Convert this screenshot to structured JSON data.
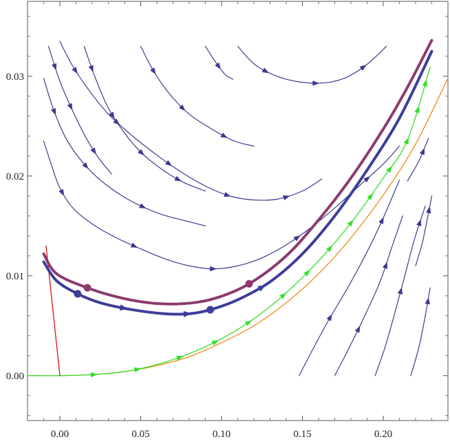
{
  "chart_data": {
    "type": "line",
    "title": "",
    "xlabel": "",
    "ylabel": "",
    "xlim": [
      -0.02,
      0.24
    ],
    "ylim": [
      -0.0045,
      0.0375
    ],
    "x_ticks": [
      {
        "value": 0.0,
        "label": "0.00"
      },
      {
        "value": 0.05,
        "label": "0.05"
      },
      {
        "value": 0.1,
        "label": "0.10"
      },
      {
        "value": 0.15,
        "label": "0.15"
      },
      {
        "value": 0.2,
        "label": "0.20"
      }
    ],
    "y_ticks": [
      {
        "value": 0.0,
        "label": "0.00"
      },
      {
        "value": 0.01,
        "label": "0.01"
      },
      {
        "value": 0.02,
        "label": "0.02"
      },
      {
        "value": 0.03,
        "label": "0.03"
      }
    ],
    "grid": false,
    "legend": "none",
    "colors": {
      "stream": "#3b3a8e",
      "thick_blue": "#3d3d9a",
      "thick_purple": "#8c3b6e",
      "green": "#33e02a",
      "orange": "#f08a1a",
      "red": "#e01010"
    },
    "series": [
      {
        "role": "flow-line",
        "color_key": "stream",
        "width": 1.2,
        "arrows": [
          0.15,
          0.45,
          0.8
        ],
        "points": [
          [
            -0.007,
            0.033
          ],
          [
            0.0,
            0.0295
          ],
          [
            0.008,
            0.0265
          ],
          [
            0.016,
            0.0239
          ],
          [
            0.024,
            0.0218
          ],
          [
            0.032,
            0.0202
          ]
        ]
      },
      {
        "role": "flow-line",
        "color_key": "stream",
        "width": 1.2,
        "arrows": [
          0.12,
          0.38,
          0.62,
          0.85
        ],
        "points": [
          [
            0.015,
            0.033
          ],
          [
            0.022,
            0.0298
          ],
          [
            0.03,
            0.0268
          ],
          [
            0.04,
            0.0243
          ],
          [
            0.05,
            0.0224
          ],
          [
            0.062,
            0.0208
          ],
          [
            0.076,
            0.0194
          ],
          [
            0.09,
            0.0185
          ]
        ]
      },
      {
        "role": "flow-line",
        "color_key": "stream",
        "width": 1.2,
        "arrows": [
          0.18,
          0.48,
          0.8
        ],
        "points": [
          [
            0.05,
            0.033
          ],
          [
            0.058,
            0.0305
          ],
          [
            0.068,
            0.0282
          ],
          [
            0.08,
            0.0262
          ],
          [
            0.094,
            0.0247
          ],
          [
            0.108,
            0.0235
          ],
          [
            0.12,
            0.023
          ]
        ]
      },
      {
        "role": "flow-line",
        "color_key": "stream",
        "width": 1.2,
        "arrows": [
          0.55
        ],
        "points": [
          [
            0.09,
            0.033
          ],
          [
            0.096,
            0.0315
          ],
          [
            0.102,
            0.0302
          ],
          [
            0.107,
            0.0297
          ]
        ]
      },
      {
        "role": "flow-line",
        "color_key": "stream",
        "width": 1.2,
        "arrows": [
          0.22,
          0.52,
          0.82
        ],
        "points": [
          [
            0.11,
            0.033
          ],
          [
            0.122,
            0.031
          ],
          [
            0.14,
            0.0297
          ],
          [
            0.16,
            0.0293
          ],
          [
            0.176,
            0.0298
          ],
          [
            0.19,
            0.0312
          ],
          [
            0.202,
            0.033
          ]
        ]
      },
      {
        "role": "flow-line",
        "color_key": "stream",
        "width": 1.2,
        "arrows": [
          0.12,
          0.32,
          0.5,
          0.7,
          0.9
        ],
        "points": [
          [
            -0.01,
            0.0235
          ],
          [
            -0.005,
            0.021
          ],
          [
            0.0,
            0.0188
          ],
          [
            0.008,
            0.0168
          ],
          [
            0.02,
            0.0152
          ],
          [
            0.035,
            0.0138
          ],
          [
            0.05,
            0.0127
          ],
          [
            0.065,
            0.0117
          ],
          [
            0.08,
            0.011
          ],
          [
            0.095,
            0.0107
          ],
          [
            0.11,
            0.011
          ],
          [
            0.125,
            0.0118
          ],
          [
            0.14,
            0.0131
          ],
          [
            0.155,
            0.0148
          ],
          [
            0.17,
            0.0168
          ],
          [
            0.185,
            0.019
          ],
          [
            0.2,
            0.0212
          ],
          [
            0.21,
            0.023
          ]
        ]
      },
      {
        "role": "flow-line",
        "color_key": "stream",
        "width": 1.2,
        "arrows": [
          0.15,
          0.42,
          0.72
        ],
        "points": [
          [
            -0.01,
            0.0298
          ],
          [
            -0.004,
            0.0267
          ],
          [
            0.004,
            0.0237
          ],
          [
            0.015,
            0.0212
          ],
          [
            0.028,
            0.0192
          ],
          [
            0.044,
            0.0175
          ],
          [
            0.062,
            0.0162
          ],
          [
            0.078,
            0.0155
          ],
          [
            0.09,
            0.015
          ]
        ]
      },
      {
        "role": "flow-line",
        "color_key": "stream",
        "width": 1.2,
        "arrows": [
          0.1,
          0.3,
          0.5,
          0.7,
          0.88
        ],
        "points": [
          [
            0.0,
            0.0335
          ],
          [
            0.008,
            0.031
          ],
          [
            0.018,
            0.0286
          ],
          [
            0.03,
            0.0262
          ],
          [
            0.045,
            0.024
          ],
          [
            0.06,
            0.0221
          ],
          [
            0.075,
            0.0204
          ],
          [
            0.09,
            0.019
          ],
          [
            0.105,
            0.018
          ],
          [
            0.12,
            0.0176
          ],
          [
            0.135,
            0.0177
          ],
          [
            0.15,
            0.0185
          ],
          [
            0.162,
            0.0197
          ]
        ]
      },
      {
        "role": "flow-line",
        "color_key": "stream",
        "width": 1.2,
        "arrows": [
          0.3,
          0.8
        ],
        "points": [
          [
            0.148,
            0.0
          ],
          [
            0.156,
            0.0025
          ],
          [
            0.166,
            0.0055
          ],
          [
            0.178,
            0.0088
          ],
          [
            0.19,
            0.0124
          ],
          [
            0.2,
            0.0158
          ],
          [
            0.21,
            0.0196
          ]
        ]
      },
      {
        "role": "flow-line",
        "color_key": "stream",
        "width": 1.2,
        "arrows": [
          0.3,
          0.7
        ],
        "points": [
          [
            0.17,
            0.0
          ],
          [
            0.178,
            0.0025
          ],
          [
            0.188,
            0.0058
          ],
          [
            0.198,
            0.0094
          ],
          [
            0.206,
            0.0132
          ],
          [
            0.212,
            0.016
          ]
        ]
      },
      {
        "role": "flow-line",
        "color_key": "stream",
        "width": 1.2,
        "arrows": [
          0.5,
          0.9
        ],
        "points": [
          [
            0.195,
            0.0
          ],
          [
            0.201,
            0.0028
          ],
          [
            0.207,
            0.0062
          ],
          [
            0.213,
            0.0098
          ],
          [
            0.219,
            0.0135
          ],
          [
            0.226,
            0.017
          ]
        ]
      },
      {
        "role": "flow-line",
        "color_key": "stream",
        "width": 1.2,
        "arrows": [
          0.85
        ],
        "points": [
          [
            0.217,
            0.0
          ],
          [
            0.222,
            0.0028
          ],
          [
            0.226,
            0.006
          ],
          [
            0.229,
            0.0088
          ]
        ]
      },
      {
        "role": "flow-line",
        "color_key": "stream",
        "width": 1.2,
        "arrows": [
          0.8
        ],
        "points": [
          [
            0.22,
            0.011
          ],
          [
            0.224,
            0.0132
          ],
          [
            0.227,
            0.0155
          ],
          [
            0.23,
            0.018
          ]
        ]
      },
      {
        "role": "flow-line",
        "color_key": "stream",
        "width": 1.2,
        "arrows": [
          0.7
        ],
        "points": [
          [
            0.215,
            0.0195
          ],
          [
            0.222,
            0.0215
          ],
          [
            0.228,
            0.0238
          ]
        ]
      },
      {
        "role": "orange-curve",
        "color_key": "orange",
        "width": 1.3,
        "arrows": [],
        "points": [
          [
            -0.02,
            0.0
          ],
          [
            0.0,
            0.0
          ],
          [
            0.02,
            0.0001
          ],
          [
            0.04,
            0.0004
          ],
          [
            0.06,
            0.001
          ],
          [
            0.08,
            0.0019
          ],
          [
            0.1,
            0.0033
          ],
          [
            0.12,
            0.005
          ],
          [
            0.14,
            0.0073
          ],
          [
            0.16,
            0.0102
          ],
          [
            0.18,
            0.0138
          ],
          [
            0.2,
            0.0181
          ],
          [
            0.22,
            0.0232
          ],
          [
            0.24,
            0.0298
          ]
        ]
      },
      {
        "role": "green-curve",
        "color_key": "green",
        "width": 1.3,
        "arrows": [
          0.12,
          0.2,
          0.28,
          0.35,
          0.42,
          0.5,
          0.56,
          0.62,
          0.68,
          0.74,
          0.8,
          0.86,
          0.92,
          0.97
        ],
        "points": [
          [
            -0.02,
            0.0
          ],
          [
            0.0,
            0.0
          ],
          [
            0.02,
            0.0001
          ],
          [
            0.04,
            0.0004
          ],
          [
            0.06,
            0.0011
          ],
          [
            0.08,
            0.0022
          ],
          [
            0.1,
            0.0037
          ],
          [
            0.12,
            0.0057
          ],
          [
            0.14,
            0.0083
          ],
          [
            0.16,
            0.0115
          ],
          [
            0.18,
            0.0153
          ],
          [
            0.2,
            0.0198
          ],
          [
            0.215,
            0.0236
          ],
          [
            0.229,
            0.0309
          ]
        ]
      },
      {
        "role": "red-line",
        "color_key": "red",
        "width": 1.3,
        "arrows": [],
        "points": [
          [
            -0.0085,
            0.013
          ],
          [
            0.0,
            0.0
          ]
        ]
      },
      {
        "role": "thick-blue-curve",
        "color_key": "thick_blue",
        "width": 4,
        "arrows": [
          0.18,
          0.3,
          0.45
        ],
        "points": [
          [
            -0.01,
            0.0114
          ],
          [
            -0.002,
            0.0095
          ],
          [
            0.011,
            0.0082
          ],
          [
            0.025,
            0.0073
          ],
          [
            0.045,
            0.0066
          ],
          [
            0.065,
            0.0062
          ],
          [
            0.08,
            0.0062
          ],
          [
            0.093,
            0.0066
          ],
          [
            0.11,
            0.0076
          ],
          [
            0.13,
            0.0094
          ],
          [
            0.15,
            0.0122
          ],
          [
            0.17,
            0.016
          ],
          [
            0.19,
            0.0206
          ],
          [
            0.21,
            0.0258
          ],
          [
            0.23,
            0.0325
          ]
        ]
      },
      {
        "role": "thick-purple-curve",
        "color_key": "thick_purple",
        "width": 4,
        "arrows": [],
        "points": [
          [
            -0.01,
            0.0122
          ],
          [
            -0.002,
            0.0102
          ],
          [
            0.017,
            0.0088
          ],
          [
            0.035,
            0.0079
          ],
          [
            0.055,
            0.0073
          ],
          [
            0.075,
            0.0072
          ],
          [
            0.095,
            0.0077
          ],
          [
            0.117,
            0.0092
          ],
          [
            0.14,
            0.012
          ],
          [
            0.16,
            0.0156
          ],
          [
            0.18,
            0.0198
          ],
          [
            0.2,
            0.0247
          ],
          [
            0.215,
            0.0289
          ],
          [
            0.23,
            0.0336
          ]
        ]
      }
    ],
    "markers": [
      {
        "x": 0.017,
        "y": 0.0088,
        "color_key": "thick_purple"
      },
      {
        "x": 0.117,
        "y": 0.0092,
        "color_key": "thick_purple"
      },
      {
        "x": 0.011,
        "y": 0.0082,
        "color_key": "thick_blue"
      },
      {
        "x": 0.093,
        "y": 0.0066,
        "color_key": "thick_blue"
      }
    ]
  }
}
